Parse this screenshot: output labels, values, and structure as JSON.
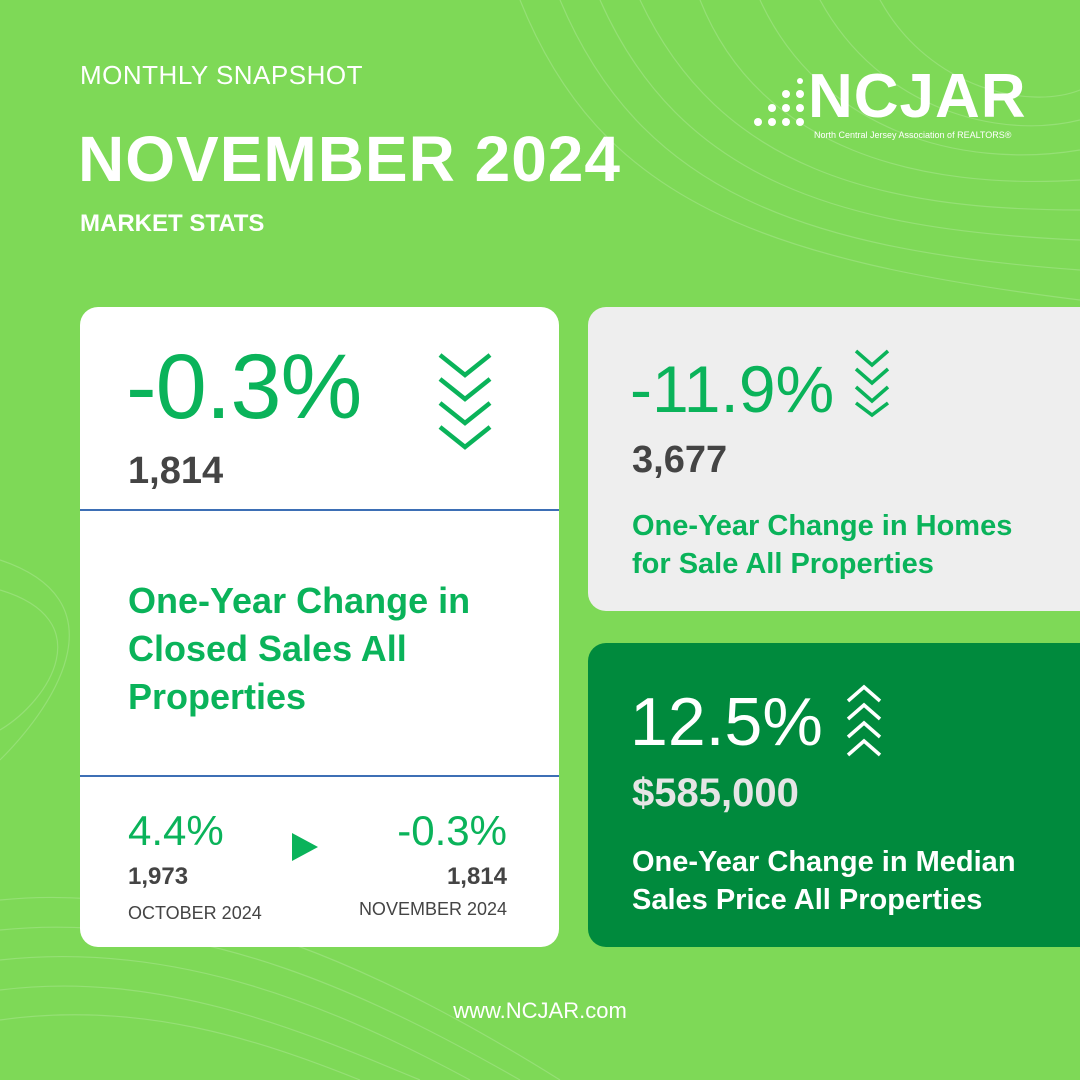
{
  "header": {
    "eyebrow": "MONTHLY SNAPSHOT",
    "title": "NOVEMBER 2024",
    "subtitle": "MARKET STATS"
  },
  "logo": {
    "wordmark": "NCJAR",
    "tagline": "North Central Jersey Association of REALTORS®"
  },
  "closed_sales": {
    "change": "-0.3%",
    "value": "1,814",
    "trend_icon": "triple-chevron-down-icon",
    "label": "One-Year Change in Closed Sales All Properties",
    "prev": {
      "change": "4.4%",
      "value": "1,973",
      "date": "OCTOBER  2024"
    },
    "curr": {
      "change": "-0.3%",
      "value": "1,814",
      "date": "NOVEMBER 2024"
    },
    "compare_icon": "play-triangle-icon"
  },
  "homes_for_sale": {
    "change": "-11.9%",
    "value": "3,677",
    "trend_icon": "triple-chevron-down-icon",
    "label": "One-Year Change in Homes for Sale All Properties"
  },
  "median_price": {
    "change": "12.5%",
    "value": "$585,000",
    "trend_icon": "triple-chevron-up-icon",
    "label": "One-Year Change in Median Sales Price All Properties"
  },
  "footer": {
    "url": "www.NCJAR.com"
  },
  "colors": {
    "background": "#7ed957",
    "accent_green": "#0ab35a",
    "dark_green": "#008a3d",
    "divider_blue": "#3d6fb5"
  }
}
